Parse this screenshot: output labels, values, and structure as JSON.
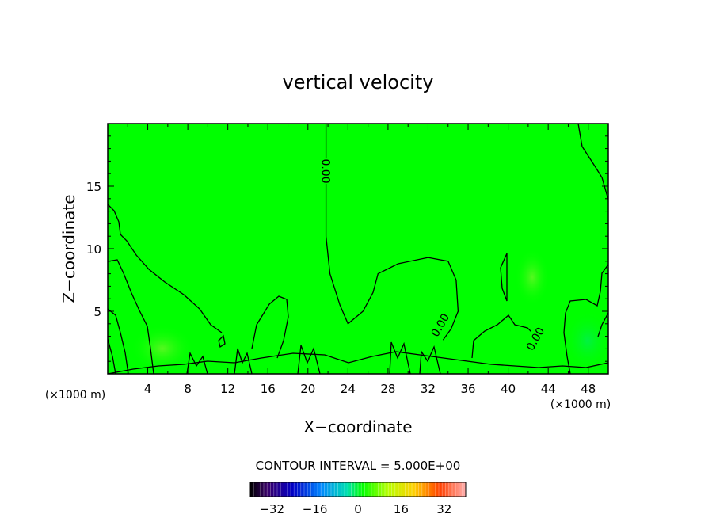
{
  "chart_data": {
    "type": "heatmap",
    "title": "vertical velocity",
    "xlabel": "X−coordinate",
    "ylabel": "Z−coordinate",
    "x_unit": "(×1000 m)",
    "z_unit": "(×1000 m)",
    "xlim": [
      0,
      50
    ],
    "ylim": [
      0,
      20
    ],
    "x_ticks": [
      4,
      8,
      12,
      16,
      20,
      24,
      28,
      32,
      36,
      40,
      44,
      48
    ],
    "y_ticks": [
      5,
      10,
      15
    ],
    "contour_interval_text": "CONTOUR INTERVAL = 5.000E+00",
    "contour_labels": [
      {
        "text": "0.00",
        "x": 21.8,
        "z": 16.2
      },
      {
        "text": "0.00",
        "x": 33.2,
        "z": 3.9
      },
      {
        "text": "0.00",
        "x": 42.7,
        "z": 2.8
      }
    ],
    "colorbar": {
      "min": -40,
      "max": 40,
      "ticks": [
        -32,
        -16,
        0,
        16,
        32
      ],
      "tick_labels": [
        "−32",
        "−16",
        "0",
        "16",
        "32"
      ]
    },
    "field_color": "#00ff00",
    "contour_color": "#000000",
    "zero_contour": [
      [
        21.8,
        20
      ],
      [
        21.8,
        15
      ],
      [
        21.8,
        11
      ],
      [
        22.2,
        8
      ],
      [
        23.2,
        5.5
      ],
      [
        24.0,
        4.0
      ],
      [
        25.5,
        5.0
      ],
      [
        26.5,
        6.5
      ],
      [
        27.0,
        8.0
      ],
      [
        29.0,
        8.8
      ],
      [
        32.0,
        9.3
      ],
      [
        34.0,
        9.0
      ],
      [
        34.8,
        7.5
      ],
      [
        35.0,
        5.0
      ],
      [
        34.3,
        3.6
      ],
      [
        33.5,
        2.7
      ]
    ]
  }
}
